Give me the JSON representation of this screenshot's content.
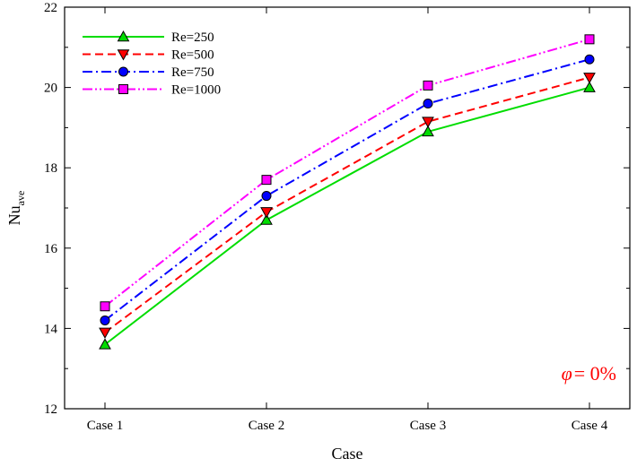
{
  "chart_data": {
    "type": "line",
    "categories": [
      "Case 1",
      "Case 2",
      "Case 3",
      "Case 4"
    ],
    "xlabel": "Case",
    "ylabel": "Nu",
    "ylabel_sub": "ave",
    "ylim": [
      12,
      22
    ],
    "yticks": [
      12,
      14,
      16,
      18,
      20,
      22
    ],
    "grid": false,
    "legend_position": "top-left",
    "annotation": {
      "symbol": "φ",
      "text": "= 0%",
      "color": "#ff0000",
      "position": "bottom-right"
    },
    "series": [
      {
        "name": "Re=250",
        "values": [
          13.6,
          16.7,
          18.9,
          20.0
        ],
        "color": "#00dd00",
        "dash": "solid",
        "marker": "triangle-up"
      },
      {
        "name": "Re=500",
        "values": [
          13.9,
          16.9,
          19.15,
          20.25
        ],
        "color": "#ff0000",
        "dash": "dashed",
        "marker": "triangle-down"
      },
      {
        "name": "Re=750",
        "values": [
          14.2,
          17.3,
          19.6,
          20.7
        ],
        "color": "#0000ff",
        "dash": "dash-dot",
        "marker": "circle"
      },
      {
        "name": "Re=1000",
        "values": [
          14.55,
          17.7,
          20.05,
          21.2
        ],
        "color": "#ff00ff",
        "dash": "dash-dot-dot",
        "marker": "square"
      }
    ]
  }
}
